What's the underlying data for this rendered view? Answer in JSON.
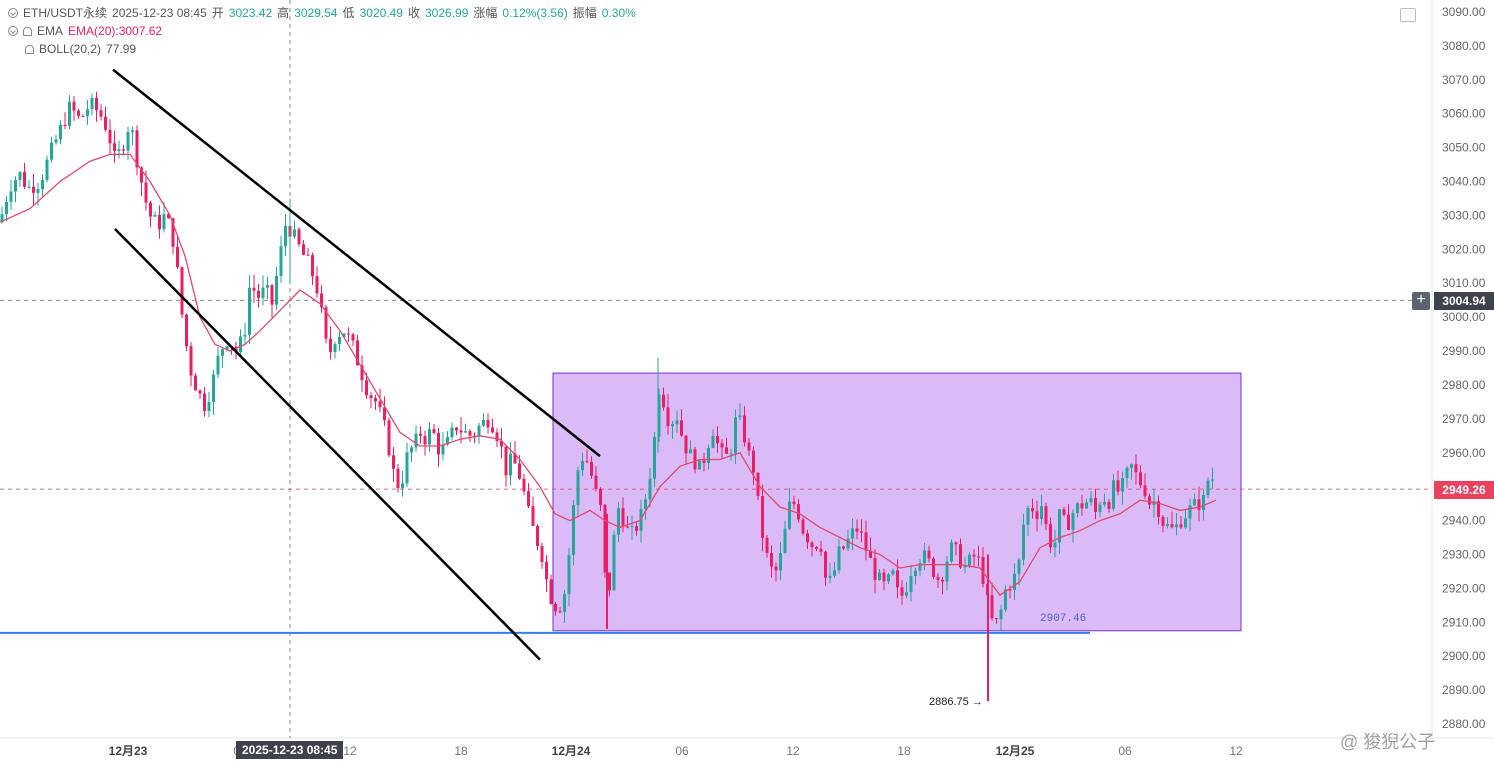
{
  "header": {
    "symbol": "ETH/USDT永续",
    "datetime": "2025-12-23 08:45",
    "open_label": "开",
    "open": "3023.42",
    "high_label": "高",
    "high": "3029.54",
    "low_label": "低",
    "low": "3020.49",
    "close_label": "收",
    "close": "3026.99",
    "change_label": "涨幅",
    "change": "0.12%(3.56)",
    "amp_label": "振幅",
    "amp": "0.30%"
  },
  "indicators": {
    "ema_name": "EMA",
    "ema_value": "EMA(20):3007.62",
    "boll_name": "BOLL(20,2)",
    "boll_extra": "77.99"
  },
  "price_axis": {
    "min": 2880,
    "max": 3090,
    "step": 10,
    "labels": [
      "3090.00",
      "3080.00",
      "3070.00",
      "3060.00",
      "3050.00",
      "3040.00",
      "3030.00",
      "3020.00",
      "3010.00",
      "3000.00",
      "2990.00",
      "2980.00",
      "2970.00",
      "2960.00",
      "2950.00",
      "2940.00",
      "2930.00",
      "2920.00",
      "2910.00",
      "2900.00",
      "2890.00",
      "2880.00"
    ]
  },
  "time_axis": {
    "labels": [
      "12月23",
      "06",
      "12",
      "18",
      "12月24",
      "06",
      "12",
      "18",
      "12月25",
      "06",
      "12"
    ]
  },
  "crosshair": {
    "time_label": "2025-12-23 08:45",
    "price_label": "3004.94",
    "price": 3004.94
  },
  "last_price": {
    "label": "2949.26",
    "value": 2949.26
  },
  "annotations": {
    "support_label": "2907.46",
    "support_value": 2907.46,
    "low_label": "2886.75",
    "low_value": 2886.75,
    "box_top": 2983.5,
    "box_bottom": 2907.5
  },
  "watermark": "@ 狻猊公子",
  "colors": {
    "up": "#26a69a",
    "down": "#e91e63",
    "ema": "#e04a6a",
    "support": "#2f80ed",
    "box_fill": "#d7b4f6",
    "box_stroke": "#7b2fc9",
    "last_tag": "#e8425e",
    "crosshair_tag": "#3d424d"
  },
  "chart_data": {
    "type": "candlestick",
    "title": "ETH/USDT永续",
    "ylim": [
      2880,
      3090
    ],
    "x_ticks": [
      "12月23",
      "06",
      "12",
      "18",
      "12月24",
      "06",
      "12",
      "18",
      "12月25",
      "06",
      "12"
    ],
    "close_path": [
      [
        0,
        3028
      ],
      [
        5,
        3034
      ],
      [
        12,
        3040
      ],
      [
        20,
        3042
      ],
      [
        28,
        3038
      ],
      [
        40,
        3040
      ],
      [
        50,
        3048
      ],
      [
        60,
        3055
      ],
      [
        70,
        3062
      ],
      [
        80,
        3058
      ],
      [
        90,
        3063
      ],
      [
        100,
        3060
      ],
      [
        108,
        3055
      ],
      [
        115,
        3046
      ],
      [
        122,
        3050
      ],
      [
        130,
        3058
      ],
      [
        138,
        3045
      ],
      [
        145,
        3035
      ],
      [
        150,
        3030
      ],
      [
        158,
        3027
      ],
      [
        165,
        3030
      ],
      [
        172,
        3025
      ],
      [
        178,
        3012
      ],
      [
        183,
        2998
      ],
      [
        190,
        2985
      ],
      [
        198,
        2978
      ],
      [
        205,
        2974
      ],
      [
        212,
        2980
      ],
      [
        220,
        2990
      ],
      [
        228,
        2994
      ],
      [
        236,
        2990
      ],
      [
        244,
        2994
      ],
      [
        250,
        3010
      ],
      [
        258,
        3006
      ],
      [
        266,
        3008
      ],
      [
        272,
        3004
      ],
      [
        280,
        3018
      ],
      [
        286,
        3028
      ],
      [
        292,
        3025
      ],
      [
        300,
        3020
      ],
      [
        308,
        3016
      ],
      [
        316,
        3010
      ],
      [
        322,
        3000
      ],
      [
        328,
        2988
      ],
      [
        336,
        2995
      ],
      [
        344,
        2996
      ],
      [
        352,
        2992
      ],
      [
        360,
        2985
      ],
      [
        368,
        2978
      ],
      [
        376,
        2975
      ],
      [
        384,
        2968
      ],
      [
        390,
        2960
      ],
      [
        396,
        2950
      ],
      [
        402,
        2952
      ],
      [
        408,
        2960
      ],
      [
        414,
        2962
      ],
      [
        420,
        2966
      ],
      [
        426,
        2964
      ],
      [
        432,
        2967
      ],
      [
        440,
        2960
      ],
      [
        448,
        2963
      ],
      [
        456,
        2968
      ],
      [
        464,
        2966
      ],
      [
        472,
        2965
      ],
      [
        480,
        2968
      ],
      [
        488,
        2970
      ],
      [
        494,
        2968
      ],
      [
        500,
        2963
      ],
      [
        506,
        2955
      ],
      [
        512,
        2958
      ],
      [
        518,
        2955
      ],
      [
        524,
        2948
      ],
      [
        530,
        2940
      ],
      [
        536,
        2935
      ],
      [
        542,
        2930
      ],
      [
        548,
        2920
      ],
      [
        554,
        2915
      ],
      [
        560,
        2915
      ],
      [
        566,
        2920
      ],
      [
        572,
        2940
      ],
      [
        578,
        2955
      ],
      [
        584,
        2960
      ],
      [
        590,
        2955
      ],
      [
        596,
        2948
      ],
      [
        602,
        2942
      ],
      [
        607,
        2911
      ],
      [
        612,
        2930
      ],
      [
        618,
        2944
      ],
      [
        624,
        2940
      ],
      [
        630,
        2935
      ],
      [
        636,
        2938
      ],
      [
        642,
        2942
      ],
      [
        648,
        2950
      ],
      [
        654,
        2962
      ],
      [
        658,
        2980
      ],
      [
        664,
        2975
      ],
      [
        670,
        2968
      ],
      [
        676,
        2972
      ],
      [
        682,
        2965
      ],
      [
        688,
        2960
      ],
      [
        694,
        2958
      ],
      [
        700,
        2955
      ],
      [
        706,
        2960
      ],
      [
        712,
        2968
      ],
      [
        718,
        2962
      ],
      [
        724,
        2958
      ],
      [
        730,
        2960
      ],
      [
        736,
        2970
      ],
      [
        742,
        2968
      ],
      [
        748,
        2960
      ],
      [
        754,
        2955
      ],
      [
        760,
        2940
      ],
      [
        766,
        2930
      ],
      [
        772,
        2925
      ],
      [
        778,
        2925
      ],
      [
        784,
        2935
      ],
      [
        790,
        2945
      ],
      [
        796,
        2945
      ],
      [
        802,
        2938
      ],
      [
        808,
        2935
      ],
      [
        814,
        2932
      ],
      [
        820,
        2935
      ],
      [
        826,
        2922
      ],
      [
        832,
        2922
      ],
      [
        838,
        2930
      ],
      [
        844,
        2932
      ],
      [
        850,
        2935
      ],
      [
        856,
        2938
      ],
      [
        862,
        2935
      ],
      [
        868,
        2930
      ],
      [
        874,
        2925
      ],
      [
        880,
        2922
      ],
      [
        886,
        2920
      ],
      [
        892,
        2925
      ],
      [
        898,
        2918
      ],
      [
        904,
        2918
      ],
      [
        910,
        2925
      ],
      [
        916,
        2928
      ],
      [
        922,
        2930
      ],
      [
        928,
        2928
      ],
      [
        934,
        2925
      ],
      [
        940,
        2922
      ],
      [
        946,
        2928
      ],
      [
        952,
        2932
      ],
      [
        958,
        2930
      ],
      [
        964,
        2926
      ],
      [
        970,
        2928
      ],
      [
        976,
        2930
      ],
      [
        982,
        2925
      ],
      [
        988,
        2915
      ],
      [
        994,
        2908
      ],
      [
        1000,
        2912
      ],
      [
        1006,
        2920
      ],
      [
        1012,
        2922
      ],
      [
        1018,
        2925
      ],
      [
        1024,
        2940
      ],
      [
        1030,
        2945
      ],
      [
        1036,
        2942
      ],
      [
        1042,
        2945
      ],
      [
        1048,
        2935
      ],
      [
        1054,
        2932
      ],
      [
        1060,
        2942
      ],
      [
        1066,
        2938
      ],
      [
        1072,
        2942
      ],
      [
        1078,
        2944
      ],
      [
        1084,
        2945
      ],
      [
        1090,
        2946
      ],
      [
        1096,
        2942
      ],
      [
        1102,
        2948
      ],
      [
        1108,
        2945
      ],
      [
        1114,
        2950
      ],
      [
        1120,
        2948
      ],
      [
        1126,
        2953
      ],
      [
        1132,
        2956
      ],
      [
        1138,
        2952
      ],
      [
        1144,
        2950
      ],
      [
        1150,
        2945
      ],
      [
        1156,
        2946
      ],
      [
        1162,
        2940
      ],
      [
        1168,
        2938
      ],
      [
        1174,
        2937
      ],
      [
        1180,
        2940
      ],
      [
        1186,
        2942
      ],
      [
        1192,
        2944
      ],
      [
        1198,
        2945
      ],
      [
        1204,
        2946
      ],
      [
        1210,
        2955
      ],
      [
        1216,
        2949
      ]
    ],
    "ema20": [
      [
        0,
        3028
      ],
      [
        30,
        3032
      ],
      [
        60,
        3040
      ],
      [
        90,
        3046
      ],
      [
        110,
        3048
      ],
      [
        130,
        3048
      ],
      [
        150,
        3040
      ],
      [
        170,
        3030
      ],
      [
        185,
        3018
      ],
      [
        200,
        3000
      ],
      [
        215,
        2992
      ],
      [
        230,
        2990
      ],
      [
        245,
        2992
      ],
      [
        260,
        2996
      ],
      [
        280,
        3002
      ],
      [
        300,
        3008
      ],
      [
        320,
        3004
      ],
      [
        340,
        2996
      ],
      [
        360,
        2986
      ],
      [
        380,
        2976
      ],
      [
        400,
        2966
      ],
      [
        420,
        2962
      ],
      [
        440,
        2962
      ],
      [
        460,
        2964
      ],
      [
        480,
        2965
      ],
      [
        500,
        2964
      ],
      [
        520,
        2958
      ],
      [
        540,
        2950
      ],
      [
        555,
        2942
      ],
      [
        570,
        2940
      ],
      [
        590,
        2943
      ],
      [
        605,
        2940
      ],
      [
        620,
        2938
      ],
      [
        640,
        2940
      ],
      [
        660,
        2950
      ],
      [
        680,
        2956
      ],
      [
        700,
        2958
      ],
      [
        720,
        2958
      ],
      [
        740,
        2960
      ],
      [
        760,
        2950
      ],
      [
        780,
        2944
      ],
      [
        800,
        2942
      ],
      [
        820,
        2938
      ],
      [
        840,
        2935
      ],
      [
        860,
        2932
      ],
      [
        880,
        2930
      ],
      [
        900,
        2926
      ],
      [
        920,
        2927
      ],
      [
        940,
        2927
      ],
      [
        960,
        2927
      ],
      [
        980,
        2926
      ],
      [
        1000,
        2918
      ],
      [
        1020,
        2922
      ],
      [
        1040,
        2932
      ],
      [
        1060,
        2935
      ],
      [
        1080,
        2937
      ],
      [
        1100,
        2940
      ],
      [
        1120,
        2942
      ],
      [
        1140,
        2946
      ],
      [
        1160,
        2945
      ],
      [
        1180,
        2943
      ],
      [
        1200,
        2944
      ],
      [
        1216,
        2946
      ]
    ],
    "channel_lines": [
      {
        "from": [
          113,
          3073
        ],
        "to": [
          600,
          2959
        ]
      },
      {
        "from": [
          115,
          3026
        ],
        "to": [
          540,
          2899
        ]
      }
    ],
    "horizontal_levels": [
      2907.46,
      3004.94,
      2949.26
    ],
    "consolidation_box": {
      "x_from": 553,
      "x_to": 1241,
      "top": 2983.5,
      "bottom": 2907.5
    },
    "extreme_low": 2886.75
  }
}
